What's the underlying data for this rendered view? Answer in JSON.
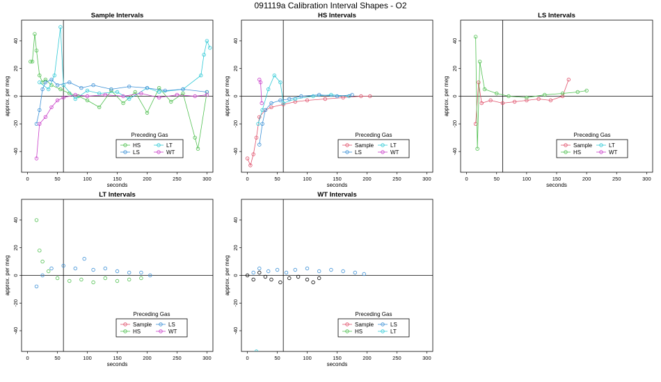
{
  "suptitle": "091119a   Calibration Interval Shapes - O2",
  "colors": {
    "HS": "#4dbf4d",
    "LS": "#3a8fd6",
    "LT": "#2ec9d6",
    "WT": "#c83cc8",
    "Sample": "#e0506a",
    "Black": "#000000"
  },
  "chart_data": [
    {
      "type": "scatter",
      "title": "Sample Intervals",
      "xlabel": "seconds",
      "ylabel": "approx. per meg",
      "xlim": [
        -10,
        310
      ],
      "ylim": [
        -55,
        55
      ],
      "xticks": [
        0,
        50,
        100,
        150,
        200,
        250,
        300
      ],
      "yticks": [
        -40,
        -20,
        0,
        20,
        40
      ],
      "vline": 60,
      "hline": 0,
      "legend": {
        "title": "Preceding Gas",
        "entries": [
          "HS",
          "LT",
          "LS",
          "WT"
        ]
      },
      "series": [
        {
          "name": "HS",
          "points": [
            [
              5,
              25
            ],
            [
              8,
              25
            ],
            [
              12,
              45
            ],
            [
              15,
              33
            ],
            [
              20,
              15
            ],
            [
              25,
              10
            ],
            [
              30,
              12
            ],
            [
              40,
              8
            ],
            [
              55,
              5
            ],
            [
              70,
              2
            ],
            [
              85,
              0
            ],
            [
              100,
              -3
            ],
            [
              120,
              -8
            ],
            [
              140,
              4
            ],
            [
              160,
              -5
            ],
            [
              180,
              3
            ],
            [
              200,
              -12
            ],
            [
              220,
              6
            ],
            [
              240,
              -4
            ],
            [
              260,
              2
            ],
            [
              280,
              -30
            ],
            [
              285,
              -38
            ],
            [
              300,
              3
            ]
          ],
          "line": true
        },
        {
          "name": "LT",
          "points": [
            [
              20,
              10
            ],
            [
              35,
              5
            ],
            [
              45,
              15
            ],
            [
              55,
              50
            ],
            [
              60,
              8
            ],
            [
              80,
              -2
            ],
            [
              100,
              4
            ],
            [
              120,
              2
            ],
            [
              150,
              3
            ],
            [
              170,
              -2
            ],
            [
              200,
              6
            ],
            [
              220,
              3
            ],
            [
              260,
              5
            ],
            [
              290,
              15
            ],
            [
              295,
              30
            ],
            [
              300,
              40
            ],
            [
              305,
              35
            ]
          ],
          "line": true
        },
        {
          "name": "LS",
          "points": [
            [
              15,
              -20
            ],
            [
              20,
              -10
            ],
            [
              25,
              5
            ],
            [
              30,
              10
            ],
            [
              40,
              12
            ],
            [
              50,
              8
            ],
            [
              70,
              10
            ],
            [
              90,
              6
            ],
            [
              110,
              8
            ],
            [
              140,
              5
            ],
            [
              170,
              7
            ],
            [
              200,
              6
            ],
            [
              230,
              4
            ],
            [
              260,
              5
            ],
            [
              300,
              3
            ]
          ],
          "line": true
        },
        {
          "name": "WT",
          "points": [
            [
              15,
              -45
            ],
            [
              20,
              -20
            ],
            [
              30,
              -15
            ],
            [
              40,
              -8
            ],
            [
              50,
              -3
            ],
            [
              60,
              -1
            ],
            [
              80,
              1
            ],
            [
              100,
              0
            ],
            [
              130,
              1
            ],
            [
              160,
              0
            ],
            [
              190,
              2
            ],
            [
              220,
              -1
            ],
            [
              250,
              1
            ],
            [
              280,
              0
            ],
            [
              300,
              1
            ]
          ],
          "line": true
        }
      ]
    },
    {
      "type": "scatter",
      "title": "HS Intervals",
      "xlabel": "seconds",
      "ylabel": "approx. per meg",
      "xlim": [
        -10,
        310
      ],
      "ylim": [
        -55,
        55
      ],
      "xticks": [
        0,
        50,
        100,
        150,
        200,
        250,
        300
      ],
      "yticks": [
        -40,
        -20,
        0,
        20,
        40
      ],
      "vline": 60,
      "hline": 0,
      "legend": {
        "title": "Preceding Gas",
        "entries": [
          "Sample",
          "LT",
          "LS",
          "WT"
        ]
      },
      "series": [
        {
          "name": "Sample",
          "points": [
            [
              0,
              -45
            ],
            [
              5,
              -50
            ],
            [
              10,
              -42
            ],
            [
              15,
              -30
            ],
            [
              20,
              -15
            ],
            [
              30,
              -10
            ],
            [
              40,
              -8
            ],
            [
              60,
              -6
            ],
            [
              80,
              -4
            ],
            [
              100,
              -3
            ],
            [
              130,
              -2
            ],
            [
              160,
              -1
            ],
            [
              190,
              0
            ],
            [
              205,
              0
            ]
          ],
          "line": true
        },
        {
          "name": "LT",
          "points": [
            [
              18,
              -20
            ],
            [
              25,
              -10
            ],
            [
              35,
              5
            ],
            [
              45,
              15
            ],
            [
              55,
              10
            ],
            [
              60,
              -5
            ],
            [
              80,
              -2
            ],
            [
              110,
              0
            ],
            [
              140,
              1
            ],
            [
              170,
              0
            ]
          ],
          "line": true
        },
        {
          "name": "LS",
          "points": [
            [
              20,
              -35
            ],
            [
              25,
              -20
            ],
            [
              30,
              -10
            ],
            [
              40,
              -5
            ],
            [
              55,
              -3
            ],
            [
              70,
              -2
            ],
            [
              90,
              0
            ],
            [
              120,
              1
            ],
            [
              150,
              0
            ],
            [
              175,
              1
            ]
          ],
          "line": true
        },
        {
          "name": "WT",
          "points": [
            [
              20,
              12
            ],
            [
              22,
              10
            ],
            [
              24,
              -5
            ]
          ],
          "line": true
        }
      ]
    },
    {
      "type": "scatter",
      "title": "LS Intervals",
      "xlabel": "seconds",
      "ylabel": "approx. per meg",
      "xlim": [
        -10,
        310
      ],
      "ylim": [
        -55,
        55
      ],
      "xticks": [
        0,
        50,
        100,
        150,
        200,
        250,
        300
      ],
      "yticks": [
        -40,
        -20,
        0,
        20,
        40
      ],
      "vline": 60,
      "hline": 0,
      "legend": {
        "title": "Preceding Gas",
        "entries": [
          "Sample",
          "LT",
          "HS",
          "WT"
        ]
      },
      "series": [
        {
          "name": "Sample",
          "points": [
            [
              15,
              -20
            ],
            [
              20,
              10
            ],
            [
              25,
              -5
            ],
            [
              40,
              -3
            ],
            [
              60,
              -5
            ],
            [
              80,
              -4
            ],
            [
              100,
              -3
            ],
            [
              120,
              -2
            ],
            [
              140,
              -3
            ],
            [
              160,
              0
            ],
            [
              170,
              12
            ]
          ],
          "line": true
        },
        {
          "name": "HS",
          "points": [
            [
              15,
              43
            ],
            [
              18,
              -38
            ],
            [
              22,
              25
            ],
            [
              30,
              5
            ],
            [
              50,
              2
            ],
            [
              70,
              0
            ],
            [
              100,
              -1
            ],
            [
              130,
              1
            ],
            [
              160,
              2
            ],
            [
              185,
              3
            ],
            [
              200,
              4
            ]
          ],
          "line": true
        }
      ]
    },
    {
      "type": "scatter",
      "title": "LT Intervals",
      "xlabel": "seconds",
      "ylabel": "approx. per meg",
      "xlim": [
        -10,
        310
      ],
      "ylim": [
        -55,
        55
      ],
      "xticks": [
        0,
        50,
        100,
        150,
        200,
        250,
        300
      ],
      "yticks": [
        -40,
        -20,
        0,
        20,
        40
      ],
      "vline": 60,
      "hline": 0,
      "legend": {
        "title": "Preceding Gas",
        "entries": [
          "Sample",
          "LS",
          "HS",
          "WT"
        ]
      },
      "series": [
        {
          "name": "HS",
          "points": [
            [
              15,
              40
            ],
            [
              20,
              18
            ],
            [
              25,
              10
            ],
            [
              35,
              3
            ],
            [
              50,
              -2
            ],
            [
              70,
              -4
            ],
            [
              90,
              -3
            ],
            [
              110,
              -5
            ],
            [
              130,
              -2
            ],
            [
              150,
              -4
            ],
            [
              170,
              -3
            ],
            [
              190,
              -2
            ]
          ],
          "line": false
        },
        {
          "name": "LS",
          "points": [
            [
              15,
              -8
            ],
            [
              25,
              0
            ],
            [
              40,
              5
            ],
            [
              60,
              7
            ],
            [
              80,
              5
            ],
            [
              95,
              12
            ],
            [
              110,
              4
            ],
            [
              130,
              5
            ],
            [
              150,
              3
            ],
            [
              170,
              2
            ],
            [
              190,
              2
            ],
            [
              205,
              0
            ]
          ],
          "line": false
        }
      ]
    },
    {
      "type": "scatter",
      "title": "WT Intervals",
      "xlabel": "seconds",
      "ylabel": "approx. per meg",
      "xlim": [
        -10,
        310
      ],
      "ylim": [
        -55,
        55
      ],
      "xticks": [
        0,
        50,
        100,
        150,
        200,
        250,
        300
      ],
      "yticks": [
        -40,
        -20,
        0,
        20,
        40
      ],
      "vline": 60,
      "hline": 0,
      "legend": {
        "title": "Preceding Gas",
        "entries": [
          "Sample",
          "LS",
          "HS",
          "LT"
        ]
      },
      "series": [
        {
          "name": "Black",
          "points": [
            [
              0,
              0
            ],
            [
              10,
              -3
            ],
            [
              20,
              2
            ],
            [
              30,
              -1
            ],
            [
              40,
              -3
            ],
            [
              55,
              -5
            ],
            [
              70,
              -2
            ],
            [
              85,
              -1
            ],
            [
              100,
              -3
            ],
            [
              110,
              -5
            ],
            [
              120,
              -2
            ]
          ],
          "line": false
        },
        {
          "name": "LS",
          "points": [
            [
              10,
              2
            ],
            [
              20,
              5
            ],
            [
              35,
              3
            ],
            [
              50,
              4
            ],
            [
              65,
              2
            ],
            [
              80,
              4
            ],
            [
              100,
              5
            ],
            [
              120,
              3
            ],
            [
              140,
              4
            ],
            [
              160,
              3
            ],
            [
              180,
              2
            ],
            [
              195,
              1
            ]
          ],
          "line": false
        },
        {
          "name": "LT",
          "points": [
            [
              15,
              -55
            ]
          ],
          "line": false
        }
      ]
    }
  ]
}
